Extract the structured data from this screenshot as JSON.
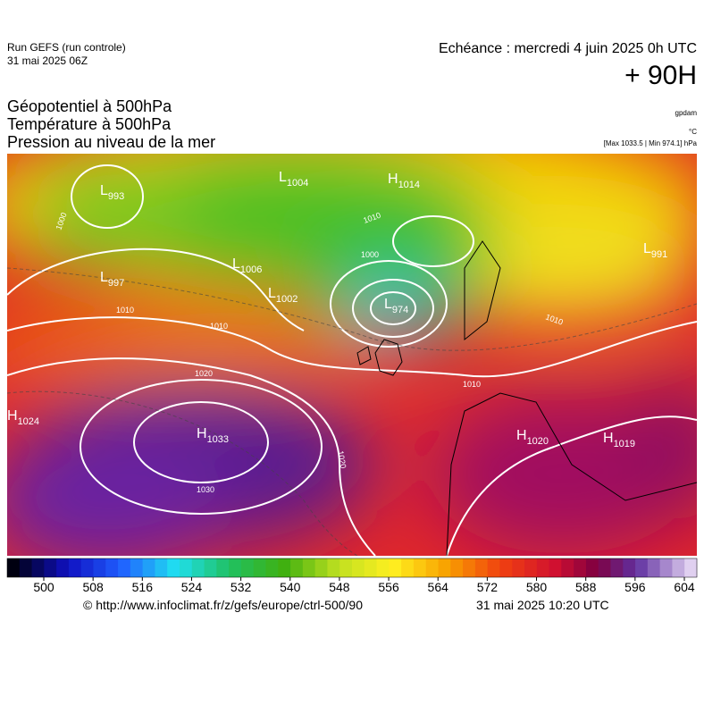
{
  "header": {
    "run": "Run GEFS (run controle)",
    "run_date": "31 mai 2025 06Z",
    "valid": "Echéance : mercredi 4 juin 2025 0h UTC",
    "lead": "+ 90H",
    "fields": [
      "Géopotentiel à 500hPa",
      "Température à 500hPa",
      "Pression au niveau de la mer"
    ],
    "unit_geo": "gpdam",
    "unit_temp": "°C",
    "range": "[Max 1033.5 | Min 974.1] hPa"
  },
  "pressure_centers": [
    {
      "type": "L",
      "value": "993"
    },
    {
      "type": "L",
      "value": "1004"
    },
    {
      "type": "H",
      "value": "1014"
    },
    {
      "type": "L",
      "value": "1006"
    },
    {
      "type": "L",
      "value": "997"
    },
    {
      "type": "L",
      "value": "1002"
    },
    {
      "type": "L",
      "value": "974"
    },
    {
      "type": "H",
      "value": "1024"
    },
    {
      "type": "H",
      "value": "1033"
    },
    {
      "type": "H",
      "value": "1020"
    },
    {
      "type": "H",
      "value": "1019"
    },
    {
      "type": "L",
      "value": "991"
    }
  ],
  "isobar_labels": [
    "1000",
    "1010",
    "1010",
    "1020",
    "1030",
    "1020",
    "1000",
    "1010",
    "1010",
    "1010"
  ],
  "colorbar": {
    "ticks": [
      500,
      508,
      516,
      524,
      532,
      540,
      548,
      556,
      564,
      572,
      580,
      588,
      596,
      604
    ]
  },
  "footer": {
    "url": "© http://www.infoclimat.fr/z/gefs/europe/ctrl-500/90",
    "generated": "31 mai 2025 10:20 UTC"
  }
}
